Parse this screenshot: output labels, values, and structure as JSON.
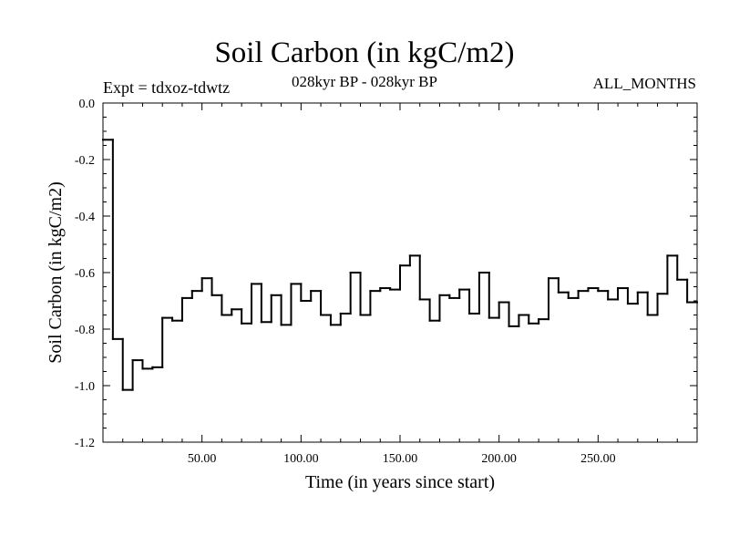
{
  "chart_data": {
    "type": "line",
    "step": true,
    "title": "Soil Carbon (in kgC/m2)",
    "xlabel": "Time (in years since start)",
    "ylabel": "Soil Carbon (in kgC/m2)",
    "annotations": {
      "experiment": "Expt = tdxoz-tdwtz",
      "period": "028kyr BP - 028kyr BP",
      "months": "ALL_MONTHS"
    },
    "xlim": [
      0,
      300
    ],
    "ylim": [
      -1.2,
      0.0
    ],
    "x_ticks": [
      {
        "value": 50,
        "label": "50.00"
      },
      {
        "value": 100,
        "label": "100.00"
      },
      {
        "value": 150,
        "label": "150.00"
      },
      {
        "value": 200,
        "label": "200.00"
      },
      {
        "value": 250,
        "label": "250.00"
      }
    ],
    "y_ticks": [
      {
        "value": 0.0,
        "label": "0.0"
      },
      {
        "value": -0.2,
        "label": "-0.2"
      },
      {
        "value": -0.4,
        "label": "-0.4"
      },
      {
        "value": -0.6,
        "label": "-0.6"
      },
      {
        "value": -0.8,
        "label": "-0.8"
      },
      {
        "value": -1.0,
        "label": "-1.0"
      },
      {
        "value": -1.2,
        "label": "-1.2"
      }
    ],
    "grid": false,
    "series": [
      {
        "color": "#000000",
        "step_width": 5,
        "x": [
          0,
          5,
          10,
          15,
          20,
          25,
          30,
          35,
          40,
          45,
          50,
          55,
          60,
          65,
          70,
          75,
          80,
          85,
          90,
          95,
          100,
          105,
          110,
          115,
          120,
          125,
          130,
          135,
          140,
          145,
          150,
          155,
          160,
          165,
          170,
          175,
          180,
          185,
          190,
          195,
          200,
          205,
          210,
          215,
          220,
          225,
          230,
          235,
          240,
          245,
          250,
          255,
          260,
          265,
          270,
          275,
          280,
          285,
          290,
          295
        ],
        "values": [
          -0.13,
          -0.835,
          -1.015,
          -0.91,
          -0.94,
          -0.935,
          -0.76,
          -0.77,
          -0.69,
          -0.665,
          -0.62,
          -0.68,
          -0.75,
          -0.73,
          -0.78,
          -0.64,
          -0.775,
          -0.68,
          -0.785,
          -0.64,
          -0.7,
          -0.665,
          -0.75,
          -0.785,
          -0.745,
          -0.6,
          -0.75,
          -0.665,
          -0.655,
          -0.66,
          -0.575,
          -0.54,
          -0.695,
          -0.77,
          -0.68,
          -0.69,
          -0.66,
          -0.745,
          -0.6,
          -0.76,
          -0.705,
          -0.79,
          -0.75,
          -0.78,
          -0.765,
          -0.62,
          -0.67,
          -0.69,
          -0.665,
          -0.655,
          -0.665,
          -0.695,
          -0.655,
          -0.71,
          -0.67,
          -0.75,
          -0.675,
          -0.54,
          -0.625,
          -0.705
        ]
      }
    ]
  }
}
